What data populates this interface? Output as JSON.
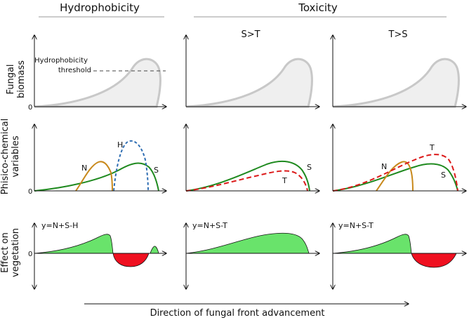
{
  "headers": {
    "hydrophobicity": "Hydrophobicity",
    "toxicity": "Toxicity",
    "s_gt_t": "S>T",
    "t_gt_s": "T>S"
  },
  "rows": {
    "biomass_line1": "Fungal",
    "biomass_line2": "biomass",
    "physchem_line1": "Phisico-chemical",
    "physchem_line2": "variables",
    "effect_line1": "Effect on",
    "effect_line2": "vegetation"
  },
  "zero_label": "0",
  "threshold": {
    "line1": "Hydrophobicity",
    "line2": "threshold"
  },
  "curve_labels": {
    "N": "N",
    "H": "H",
    "S": "S",
    "T": "T"
  },
  "equations": {
    "col1": "y=N+S-H",
    "col2": "y=N+S-T",
    "col3": "y=N+S-T"
  },
  "footer": "Direction of fungal front advancement",
  "colors": {
    "N": "#c8891c",
    "S": "#1f8a1f",
    "H": "#2f6eb3",
    "T": "#dc1a1a",
    "positive_fill": "#69e36b",
    "negative_fill": "#ef1020",
    "biomass_fill": "#efefef",
    "biomass_stroke": "#c8c8c8"
  }
}
